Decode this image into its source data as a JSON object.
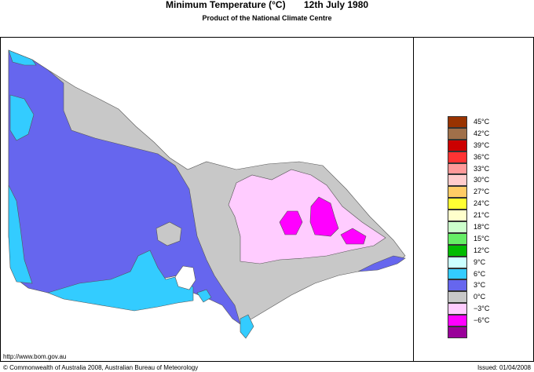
{
  "header": {
    "title": "Minimum Temperature (°C)",
    "date": "12th July 1980",
    "subtitle": "Product of the National Climate Centre"
  },
  "legend": {
    "items": [
      {
        "label": "45°C",
        "color": "#993300"
      },
      {
        "label": "42°C",
        "color": "#a0704a"
      },
      {
        "label": "39°C",
        "color": "#cc0000"
      },
      {
        "label": "36°C",
        "color": "#ff3333"
      },
      {
        "label": "33°C",
        "color": "#ff9999"
      },
      {
        "label": "30°C",
        "color": "#ffcccc"
      },
      {
        "label": "27°C",
        "color": "#ffcc66"
      },
      {
        "label": "24°C",
        "color": "#ffff33"
      },
      {
        "label": "21°C",
        "color": "#ffffcc"
      },
      {
        "label": "18°C",
        "color": "#ccffcc"
      },
      {
        "label": "15°C",
        "color": "#66ee66"
      },
      {
        "label": "12°C",
        "color": "#00bb00"
      },
      {
        "label": "9°C",
        "color": "#ccffff"
      },
      {
        "label": "6°C",
        "color": "#33ccff"
      },
      {
        "label": "3°C",
        "color": "#6666ee"
      },
      {
        "label": "0°C",
        "color": "#c8c8c8"
      },
      {
        "label": "−3°C",
        "color": "#ffccff"
      },
      {
        "label": "−6°C",
        "color": "#ff00ff"
      },
      {
        "label": "",
        "color": "#990099"
      }
    ]
  },
  "footer": {
    "url": "http://www.bom.gov.au",
    "copyright": "© Commonwealth of Australia 2008, Australian Bureau of Meteorology",
    "issued": "Issued: 01/04/2008"
  },
  "map_colors": {
    "cold_3": "#6666ee",
    "cool_6": "#33ccff",
    "zero": "#c8c8c8",
    "minus3": "#ffccff",
    "minus6": "#ff00ff"
  }
}
